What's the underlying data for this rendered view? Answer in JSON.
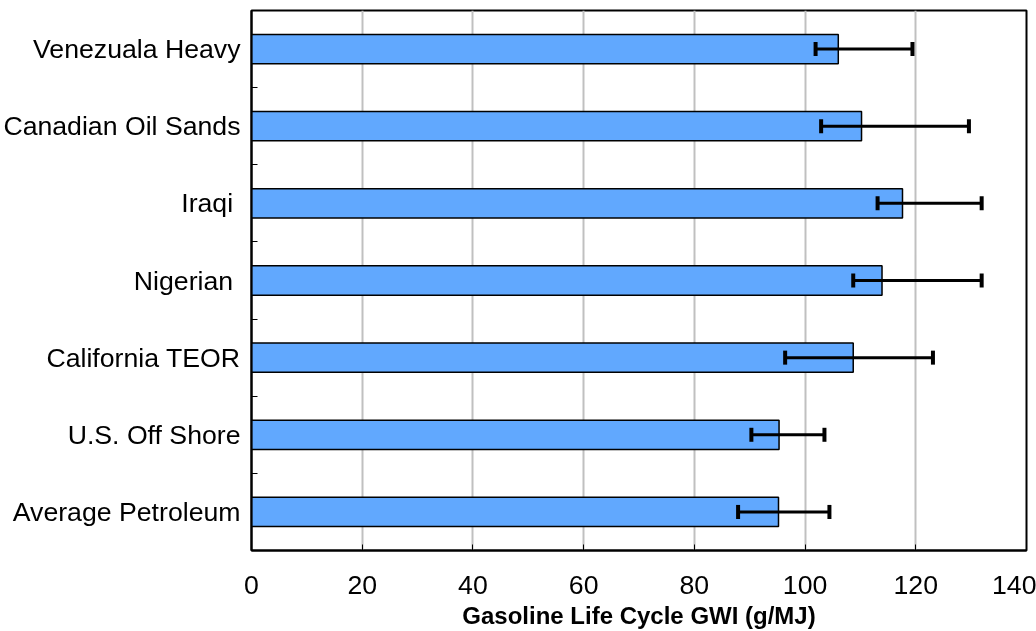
{
  "chart_data": {
    "type": "bar",
    "orientation": "horizontal",
    "categories": [
      "Venezuala Heavy",
      "Canadian Oil Sands",
      "Iraqi ",
      "Nigerian ",
      "California TEOR",
      "U.S. Off Shore",
      "Average Petroleum"
    ],
    "values": [
      106.0,
      110.2,
      117.6,
      113.9,
      108.7,
      95.3,
      95.2
    ],
    "errors": [
      [
        101.9,
        119.4
      ],
      [
        102.9,
        129.6
      ],
      [
        113.1,
        131.9
      ],
      [
        108.7,
        131.9
      ],
      [
        96.4,
        123.1
      ],
      [
        90.3,
        103.5
      ],
      [
        87.9,
        104.4
      ]
    ],
    "color": "#61a8fe",
    "xlim": [
      0,
      140
    ],
    "xticks": [
      0,
      20,
      40,
      60,
      80,
      100,
      120,
      140
    ],
    "xlabel": "Gasoline Life Cycle GWI (g/MJ)",
    "grid": "x"
  }
}
